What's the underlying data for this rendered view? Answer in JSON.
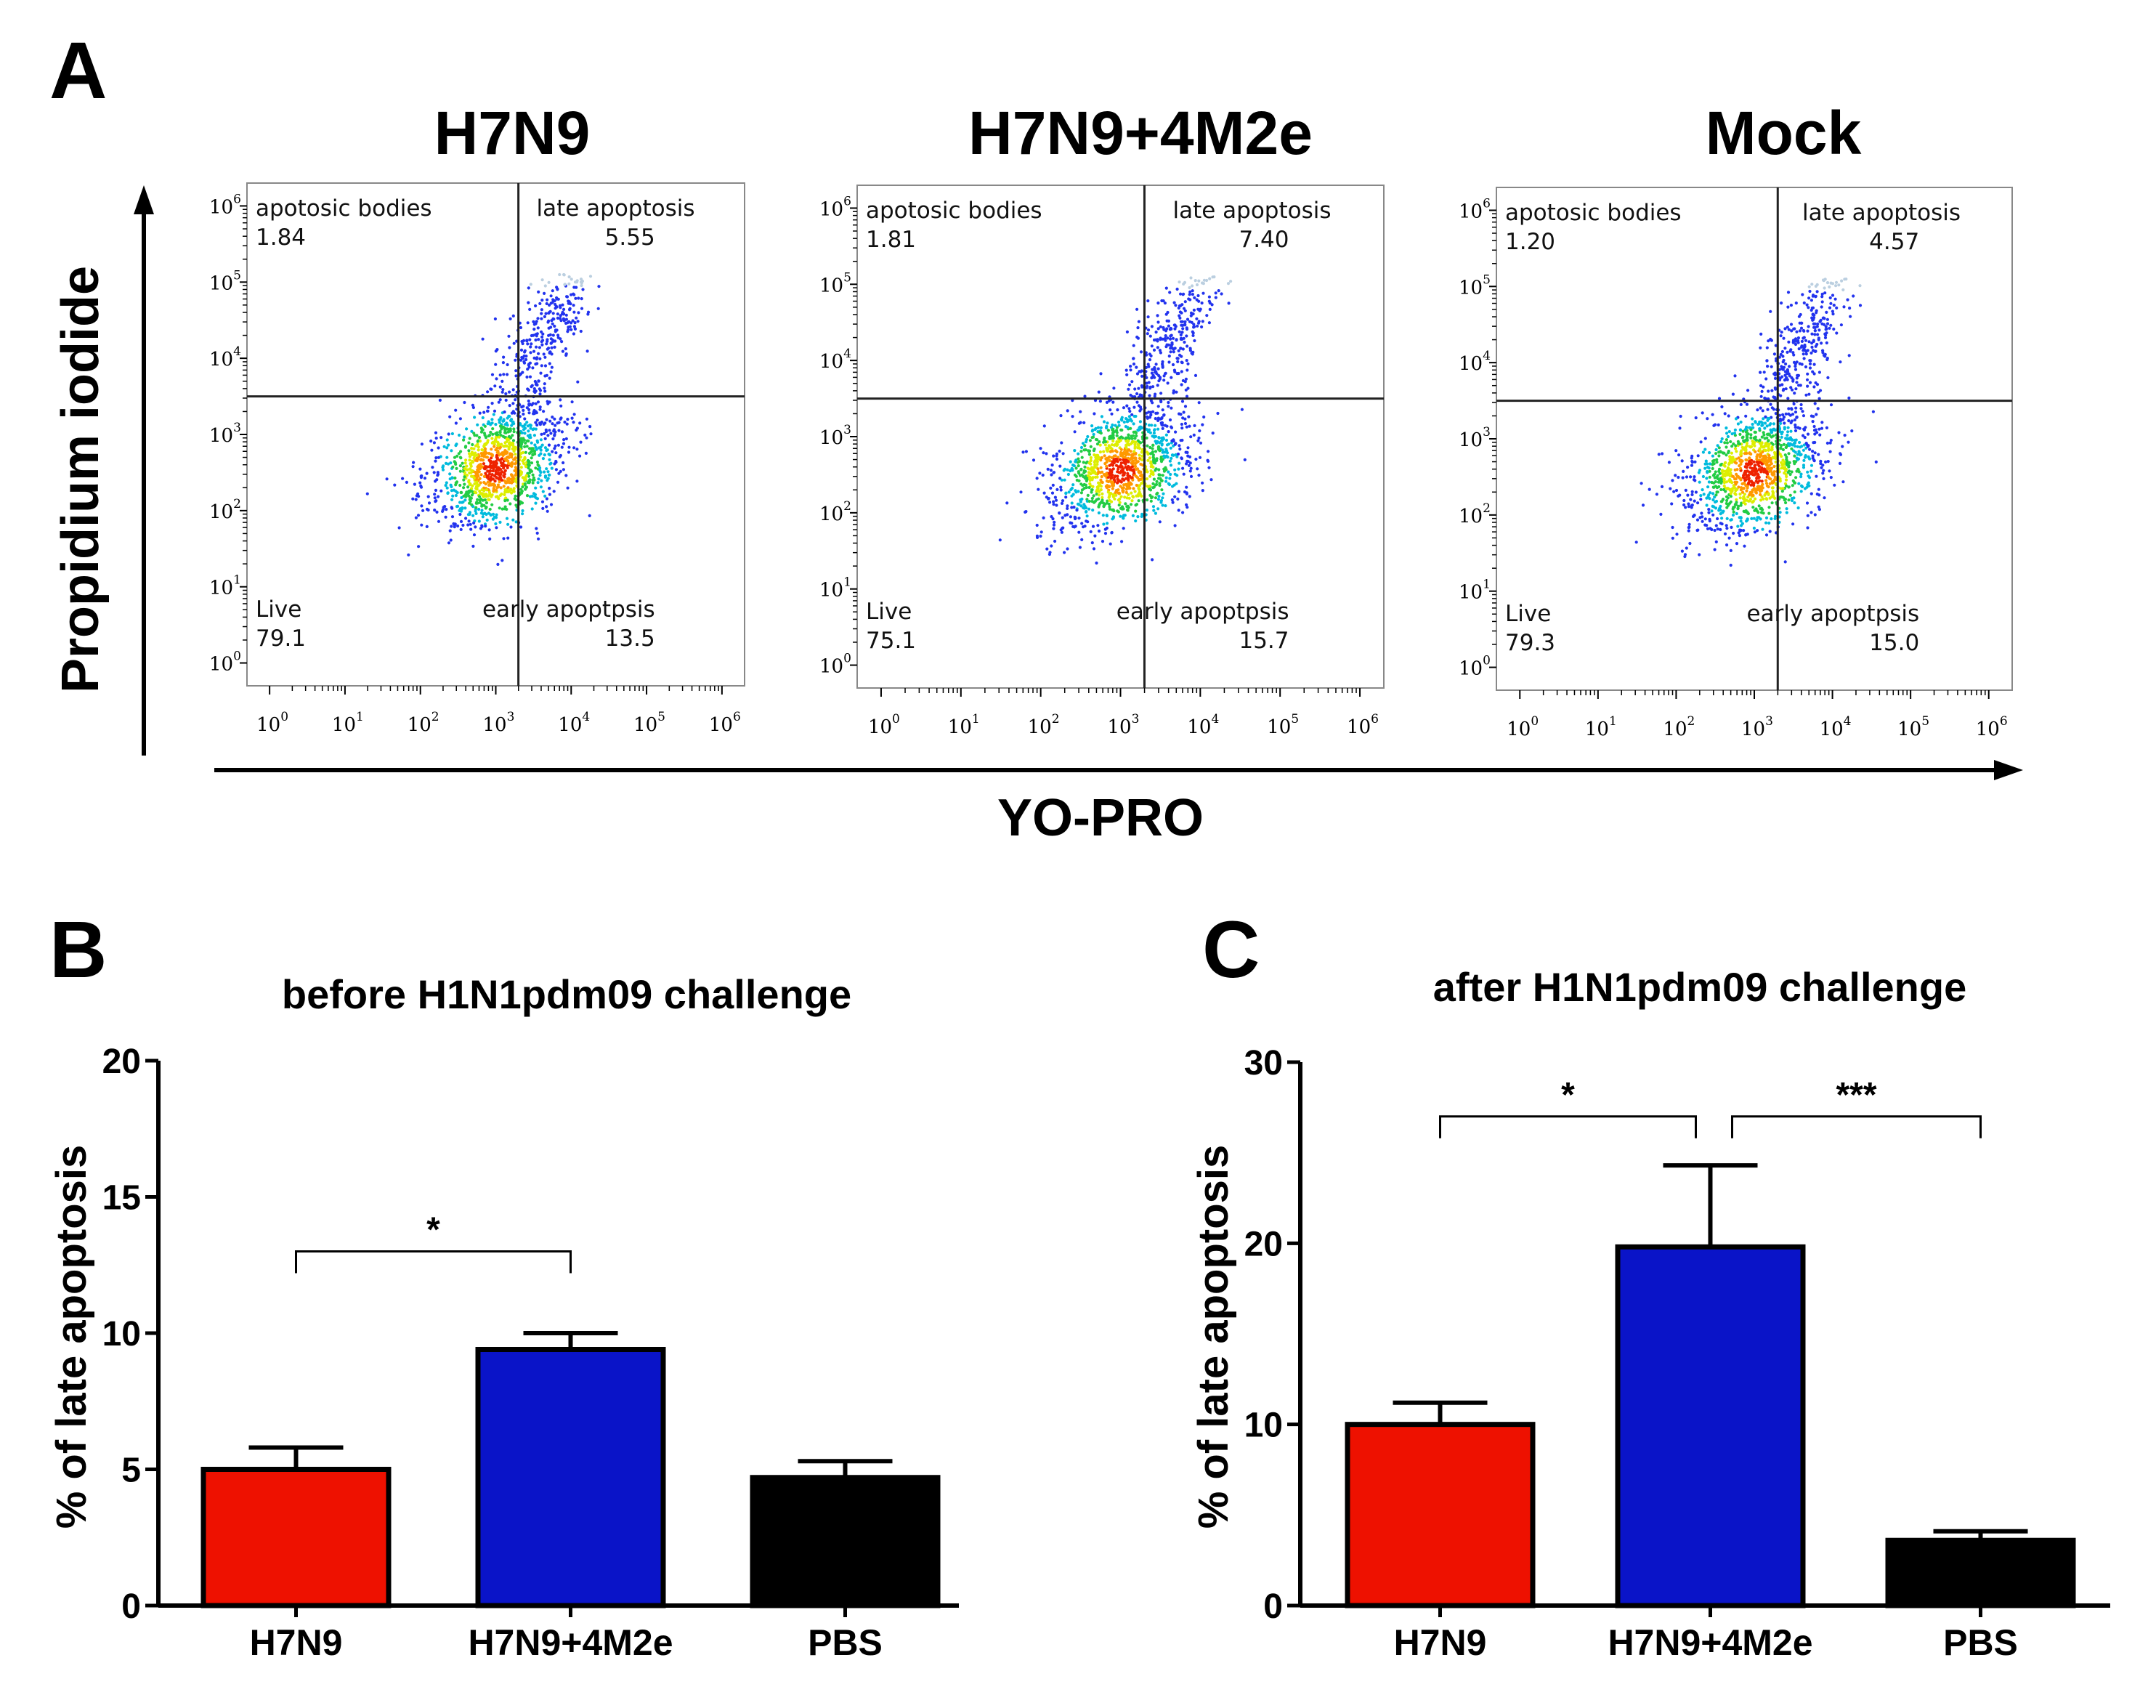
{
  "panels": {
    "a_letter": "A",
    "b_letter": "B",
    "c_letter": "C"
  },
  "flow": {
    "x_label": "YO-PRO",
    "y_label": "Propidium iodide",
    "x_range_log10": [
      -0.3,
      6.3
    ],
    "y_range_log10": [
      -0.3,
      6.3
    ],
    "tick_base": "10",
    "tick_exponents": [
      "0",
      "1",
      "2",
      "3",
      "4",
      "5",
      "6"
    ],
    "quadrant_names": {
      "ul": "apotosic bodies",
      "ur": "late apoptosis",
      "ll": "Live",
      "lr": "early apoptpsis"
    },
    "plots": [
      {
        "title": "H7N9",
        "gate_x_log10": 3.3,
        "gate_y_log10": 3.5,
        "apotosic_bodies": "1.84",
        "late_apoptosis": "5.55",
        "live": "79.1",
        "early_apoptosis": "13.5"
      },
      {
        "title": "H7N9+4M2e",
        "gate_x_log10": 3.3,
        "gate_y_log10": 3.5,
        "apotosic_bodies": "1.81",
        "late_apoptosis": "7.40",
        "live": "75.1",
        "early_apoptosis": "15.7"
      },
      {
        "title": "Mock",
        "gate_x_log10": 3.3,
        "gate_y_log10": 3.5,
        "apotosic_bodies": "1.20",
        "late_apoptosis": "4.57",
        "live": "79.3",
        "early_apoptosis": "15.0"
      }
    ]
  },
  "colors": {
    "red": "#ee1100",
    "blue": "#0a14c8",
    "black": "#000000"
  },
  "chart_data": [
    {
      "type": "bar",
      "title": "before H1N1pdm09 challenge",
      "ylabel": "% of late apoptosis",
      "xlabel": "",
      "categories": [
        "H7N9",
        "H7N9+4M2e",
        "PBS"
      ],
      "values": [
        5.0,
        9.4,
        4.7
      ],
      "errors": [
        0.8,
        0.6,
        0.6
      ],
      "ylim": [
        0,
        20
      ],
      "yticks": [
        "0",
        "5",
        "10",
        "15",
        "20"
      ],
      "significance": [
        {
          "from": 0,
          "to": 1,
          "label": "*",
          "level": 13.0
        }
      ]
    },
    {
      "type": "bar",
      "title": "after H1N1pdm09 challenge",
      "ylabel": "% of late apoptosis",
      "xlabel": "",
      "categories": [
        "H7N9",
        "H7N9+4M2e",
        "PBS"
      ],
      "values": [
        10.0,
        19.8,
        3.6
      ],
      "errors": [
        1.2,
        4.5,
        0.5
      ],
      "ylim": [
        0,
        30
      ],
      "yticks": [
        "0",
        "10",
        "20",
        "30"
      ],
      "significance": [
        {
          "from": 0,
          "to": 1,
          "label": "*",
          "level": 27.0
        },
        {
          "from": 1,
          "to": 2,
          "label": "***",
          "level": 27.0
        }
      ]
    }
  ]
}
